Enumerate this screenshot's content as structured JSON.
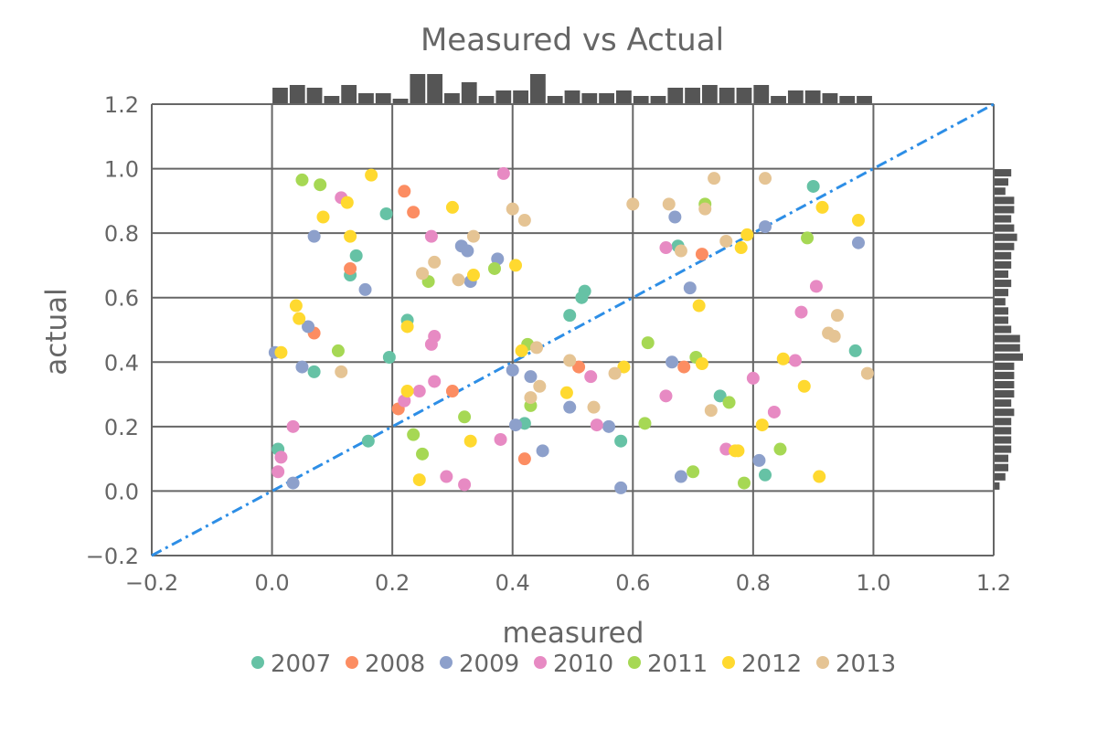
{
  "chart_data": {
    "type": "scatter",
    "title": "Measured vs Actual",
    "xlabel": "measured",
    "ylabel": "actual",
    "xlim": [
      -0.2,
      1.2
    ],
    "ylim": [
      -0.2,
      1.2
    ],
    "xticks": [
      "−0.2",
      "0.0",
      "0.2",
      "0.4",
      "0.6",
      "0.8",
      "1.0",
      "1.2"
    ],
    "yticks": [
      "−0.2",
      "0.0",
      "0.2",
      "0.4",
      "0.6",
      "0.8",
      "1.0",
      "1.2"
    ],
    "grid": true,
    "legend_position": "bottom",
    "reference_line": {
      "x": [
        -0.2,
        1.2
      ],
      "y": [
        -0.2,
        1.2
      ],
      "style": "dash-dot",
      "color": "#2d8ee6"
    },
    "histogram_color": "#555555",
    "x_histogram_counts": [
      6,
      7,
      6,
      3,
      7,
      4,
      4,
      2,
      11,
      11,
      4,
      8,
      3,
      5,
      5,
      11,
      3,
      5,
      4,
      4,
      5,
      3,
      3,
      6,
      6,
      7,
      6,
      6,
      7,
      3,
      5,
      5,
      4,
      3,
      3
    ],
    "y_histogram_counts": [
      6,
      5,
      4,
      7,
      7,
      6,
      7,
      8,
      7,
      6,
      6,
      5,
      6,
      5,
      4,
      5,
      5,
      6,
      9,
      9,
      10,
      7,
      7,
      7,
      7,
      6,
      7,
      6,
      6,
      6,
      6,
      5,
      5,
      4,
      2
    ],
    "series": [
      {
        "name": "2007",
        "color": "#66c2a5",
        "points": [
          [
            0.01,
            0.13
          ],
          [
            0.07,
            0.37
          ],
          [
            0.13,
            0.67
          ],
          [
            0.14,
            0.73
          ],
          [
            0.16,
            0.155
          ],
          [
            0.19,
            0.86
          ],
          [
            0.195,
            0.415
          ],
          [
            0.225,
            0.53
          ],
          [
            0.42,
            0.21
          ],
          [
            0.495,
            0.545
          ],
          [
            0.515,
            0.6
          ],
          [
            0.52,
            0.62
          ],
          [
            0.58,
            0.155
          ],
          [
            0.675,
            0.76
          ],
          [
            0.745,
            0.295
          ],
          [
            0.82,
            0.05
          ],
          [
            0.9,
            0.945
          ],
          [
            0.97,
            0.435
          ]
        ]
      },
      {
        "name": "2008",
        "color": "#fc8d62",
        "points": [
          [
            0.07,
            0.49
          ],
          [
            0.13,
            0.69
          ],
          [
            0.21,
            0.255
          ],
          [
            0.22,
            0.93
          ],
          [
            0.235,
            0.865
          ],
          [
            0.3,
            0.31
          ],
          [
            0.42,
            0.1
          ],
          [
            0.51,
            0.385
          ],
          [
            0.685,
            0.385
          ],
          [
            0.715,
            0.735
          ]
        ]
      },
      {
        "name": "2009",
        "color": "#8da0cb",
        "points": [
          [
            0.005,
            0.43
          ],
          [
            0.035,
            0.025
          ],
          [
            0.05,
            0.385
          ],
          [
            0.06,
            0.51
          ],
          [
            0.07,
            0.79
          ],
          [
            0.155,
            0.625
          ],
          [
            0.315,
            0.76
          ],
          [
            0.325,
            0.745
          ],
          [
            0.33,
            0.65
          ],
          [
            0.375,
            0.72
          ],
          [
            0.4,
            0.375
          ],
          [
            0.405,
            0.205
          ],
          [
            0.43,
            0.355
          ],
          [
            0.45,
            0.125
          ],
          [
            0.495,
            0.26
          ],
          [
            0.56,
            0.2
          ],
          [
            0.58,
            0.01
          ],
          [
            0.665,
            0.4
          ],
          [
            0.67,
            0.85
          ],
          [
            0.68,
            0.045
          ],
          [
            0.695,
            0.63
          ],
          [
            0.81,
            0.095
          ],
          [
            0.82,
            0.82
          ],
          [
            0.975,
            0.77
          ]
        ]
      },
      {
        "name": "2010",
        "color": "#e78ac3",
        "points": [
          [
            0.01,
            0.06
          ],
          [
            0.015,
            0.105
          ],
          [
            0.035,
            0.2
          ],
          [
            0.115,
            0.91
          ],
          [
            0.22,
            0.28
          ],
          [
            0.245,
            0.31
          ],
          [
            0.265,
            0.79
          ],
          [
            0.265,
            0.455
          ],
          [
            0.27,
            0.48
          ],
          [
            0.27,
            0.34
          ],
          [
            0.29,
            0.045
          ],
          [
            0.32,
            0.02
          ],
          [
            0.38,
            0.16
          ],
          [
            0.385,
            0.985
          ],
          [
            0.53,
            0.355
          ],
          [
            0.54,
            0.205
          ],
          [
            0.655,
            0.295
          ],
          [
            0.655,
            0.755
          ],
          [
            0.755,
            0.13
          ],
          [
            0.8,
            0.35
          ],
          [
            0.835,
            0.245
          ],
          [
            0.87,
            0.405
          ],
          [
            0.88,
            0.555
          ],
          [
            0.905,
            0.635
          ]
        ]
      },
      {
        "name": "2011",
        "color": "#a6d854",
        "points": [
          [
            0.05,
            0.965
          ],
          [
            0.08,
            0.95
          ],
          [
            0.11,
            0.435
          ],
          [
            0.235,
            0.175
          ],
          [
            0.25,
            0.115
          ],
          [
            0.26,
            0.65
          ],
          [
            0.32,
            0.23
          ],
          [
            0.37,
            0.69
          ],
          [
            0.425,
            0.455
          ],
          [
            0.43,
            0.265
          ],
          [
            0.62,
            0.21
          ],
          [
            0.625,
            0.46
          ],
          [
            0.7,
            0.06
          ],
          [
            0.705,
            0.415
          ],
          [
            0.72,
            0.89
          ],
          [
            0.76,
            0.275
          ],
          [
            0.785,
            0.025
          ],
          [
            0.845,
            0.13
          ],
          [
            0.89,
            0.785
          ]
        ]
      },
      {
        "name": "2012",
        "color": "#ffd92f",
        "points": [
          [
            0.015,
            0.43
          ],
          [
            0.04,
            0.575
          ],
          [
            0.045,
            0.535
          ],
          [
            0.085,
            0.85
          ],
          [
            0.125,
            0.895
          ],
          [
            0.13,
            0.79
          ],
          [
            0.165,
            0.98
          ],
          [
            0.225,
            0.51
          ],
          [
            0.225,
            0.31
          ],
          [
            0.245,
            0.035
          ],
          [
            0.3,
            0.88
          ],
          [
            0.33,
            0.155
          ],
          [
            0.335,
            0.67
          ],
          [
            0.405,
            0.7
          ],
          [
            0.415,
            0.435
          ],
          [
            0.49,
            0.305
          ],
          [
            0.585,
            0.385
          ],
          [
            0.71,
            0.575
          ],
          [
            0.715,
            0.395
          ],
          [
            0.77,
            0.125
          ],
          [
            0.775,
            0.125
          ],
          [
            0.78,
            0.755
          ],
          [
            0.79,
            0.795
          ],
          [
            0.815,
            0.205
          ],
          [
            0.85,
            0.41
          ],
          [
            0.885,
            0.325
          ],
          [
            0.91,
            0.045
          ],
          [
            0.915,
            0.88
          ],
          [
            0.975,
            0.84
          ]
        ]
      },
      {
        "name": "2013",
        "color": "#e5c494",
        "points": [
          [
            0.115,
            0.37
          ],
          [
            0.25,
            0.675
          ],
          [
            0.27,
            0.71
          ],
          [
            0.31,
            0.655
          ],
          [
            0.335,
            0.79
          ],
          [
            0.4,
            0.875
          ],
          [
            0.42,
            0.84
          ],
          [
            0.43,
            0.29
          ],
          [
            0.44,
            0.445
          ],
          [
            0.445,
            0.325
          ],
          [
            0.495,
            0.405
          ],
          [
            0.535,
            0.26
          ],
          [
            0.57,
            0.365
          ],
          [
            0.6,
            0.89
          ],
          [
            0.66,
            0.89
          ],
          [
            0.68,
            0.745
          ],
          [
            0.72,
            0.875
          ],
          [
            0.73,
            0.25
          ],
          [
            0.735,
            0.97
          ],
          [
            0.755,
            0.775
          ],
          [
            0.82,
            0.97
          ],
          [
            0.925,
            0.49
          ],
          [
            0.935,
            0.48
          ],
          [
            0.94,
            0.545
          ],
          [
            0.99,
            0.365
          ]
        ]
      }
    ]
  }
}
